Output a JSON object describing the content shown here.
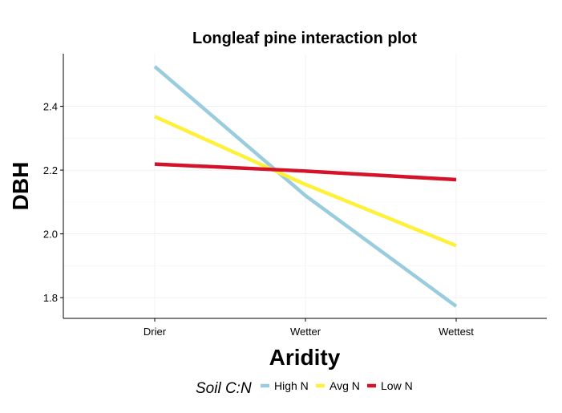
{
  "chart_data": {
    "type": "line",
    "title": "Longleaf pine interaction plot",
    "xlabel": "Aridity",
    "ylabel": "DBH",
    "categories": [
      "Drier",
      "Wetter",
      "Wettest"
    ],
    "ylim": [
      1.735,
      2.565
    ],
    "yticks": [
      1.8,
      2.0,
      2.2,
      2.4
    ],
    "ytick_labels": [
      "1.8",
      "2.0",
      "2.2",
      "2.4"
    ],
    "grid": true,
    "legend": {
      "title": "Soil C:N",
      "placement": "bottom",
      "entries": [
        "High N",
        "Avg N",
        "Low N"
      ]
    },
    "series": [
      {
        "name": "High N",
        "color": "#99CCDD",
        "values": [
          2.525,
          2.12,
          1.773
        ]
      },
      {
        "name": "Avg N",
        "color": "#FFF03A",
        "values": [
          2.368,
          2.155,
          1.963
        ]
      },
      {
        "name": "Low N",
        "color": "#D4122A",
        "values": [
          2.219,
          2.197,
          2.17
        ]
      }
    ]
  }
}
